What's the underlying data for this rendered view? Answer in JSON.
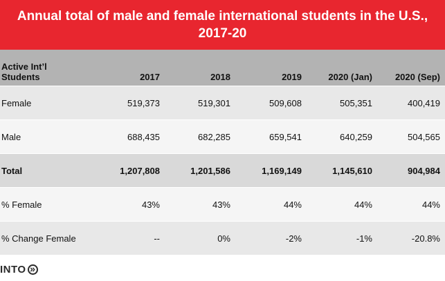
{
  "banner": {
    "title": "Annual total of male and female international students in the U.S., 2017-20"
  },
  "logo": {
    "text": "INTO"
  },
  "chart_data": {
    "type": "table",
    "title": "Annual total of male and female international students in the U.S., 2017-20",
    "corner_header": "Active Int’l Students",
    "columns": [
      "2017",
      "2018",
      "2019",
      "2020 (Jan)",
      "2020 (Sep)"
    ],
    "rows": [
      {
        "label": "Female",
        "cells": [
          "519,373",
          "519,301",
          "509,608",
          "505,351",
          "400,419"
        ],
        "emphasis": false
      },
      {
        "label": "Male",
        "cells": [
          "688,435",
          "682,285",
          "659,541",
          "640,259",
          "504,565"
        ],
        "emphasis": false
      },
      {
        "label": "Total",
        "cells": [
          "1,207,808",
          "1,201,586",
          "1,169,149",
          "1,145,610",
          "904,984"
        ],
        "emphasis": true
      },
      {
        "label": "% Female",
        "cells": [
          "43%",
          "43%",
          "44%",
          "44%",
          "44%"
        ],
        "emphasis": false
      },
      {
        "label": "% Change Female",
        "cells": [
          "--",
          "0%",
          "-2%",
          "-1%",
          "-20.8%"
        ],
        "emphasis": false
      }
    ]
  }
}
